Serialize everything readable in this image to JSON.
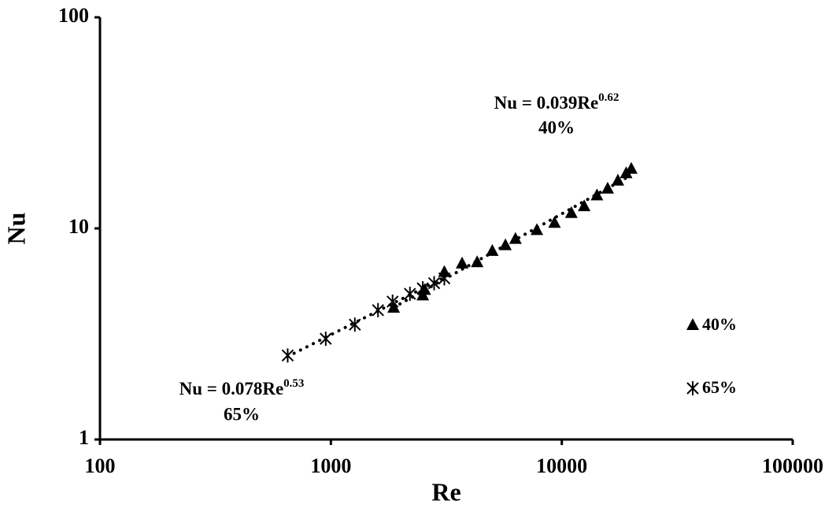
{
  "chart_data": {
    "type": "scatter",
    "x_label": "Re",
    "y_label": "Nu",
    "log_x": true,
    "log_y": true,
    "xlim": [
      100,
      100000
    ],
    "ylim": [
      1,
      100
    ],
    "xticks": [
      100,
      1000,
      10000,
      100000
    ],
    "yticks": [
      1,
      10,
      100
    ],
    "legend": "right",
    "series": [
      {
        "name": "40%",
        "marker": "triangle",
        "color": "#000000",
        "x": [
          1870,
          2500,
          2550,
          3100,
          3700,
          4300,
          5000,
          5700,
          6300,
          7800,
          9300,
          11000,
          12500,
          14200,
          15800,
          17500,
          19000,
          20000
        ],
        "values": [
          4.2,
          4.8,
          5.1,
          6.2,
          6.8,
          6.9,
          7.8,
          8.3,
          8.9,
          9.8,
          10.6,
          11.8,
          12.7,
          14.3,
          15.4,
          16.8,
          18.2,
          19.1
        ]
      },
      {
        "name": "65%",
        "marker": "star",
        "color": "#000000",
        "x": [
          650,
          950,
          1270,
          1600,
          1850,
          2200,
          2500,
          2800,
          3100
        ],
        "values": [
          2.5,
          3.0,
          3.5,
          4.1,
          4.5,
          4.9,
          5.2,
          5.5,
          5.8
        ]
      }
    ],
    "annotations": [
      {
        "text": "Nu = 0.039Re",
        "sup": "0.62",
        "label": "40%"
      },
      {
        "text": "Nu = 0.078Re",
        "sup": "0.53",
        "label": "65%"
      }
    ]
  }
}
